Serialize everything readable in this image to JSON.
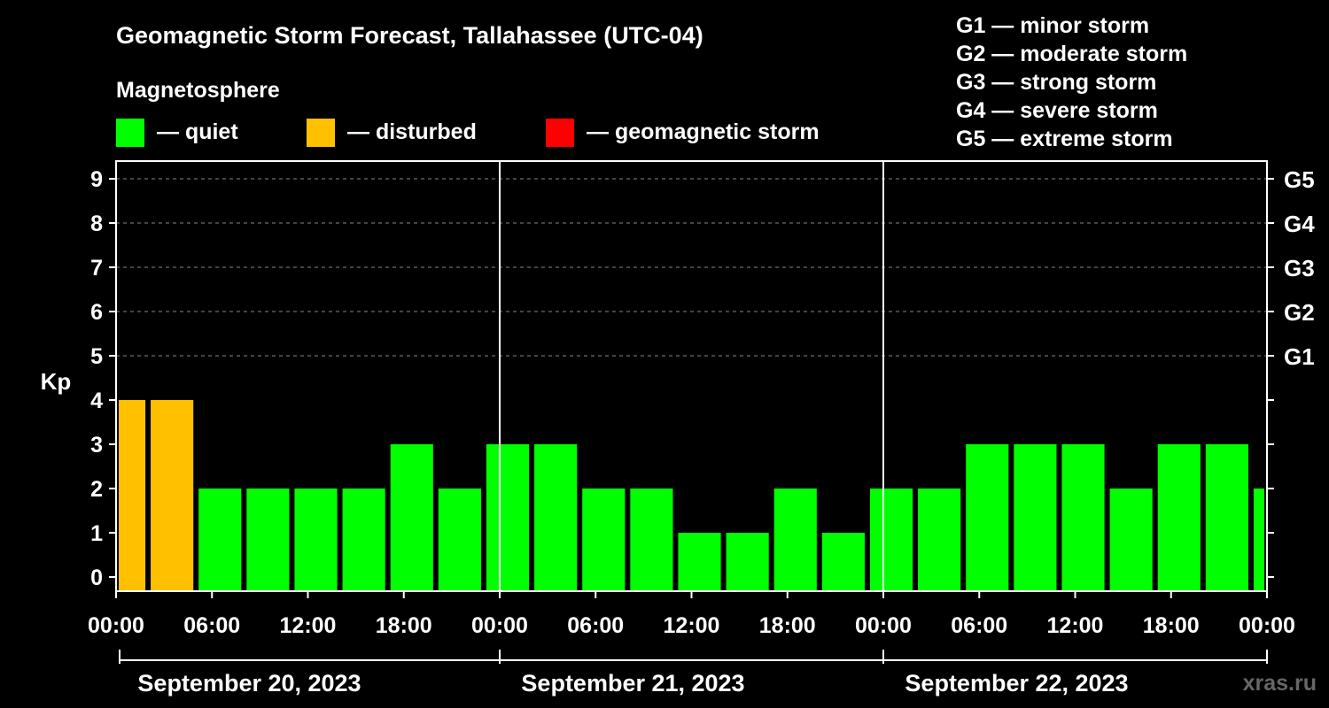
{
  "chart_data": {
    "type": "bar",
    "title": "Geomagnetic Storm Forecast, Tallahassee (UTC-04)",
    "subtitle": "Magnetosphere",
    "ylabel": "Kp",
    "ylim": [
      0,
      9
    ],
    "yticks": [
      "0",
      "1",
      "2",
      "3",
      "4",
      "5",
      "6",
      "7",
      "8",
      "9"
    ],
    "right_axis": {
      "labels": [
        {
          "kp": 5,
          "label": "G1"
        },
        {
          "kp": 6,
          "label": "G2"
        },
        {
          "kp": 7,
          "label": "G3"
        },
        {
          "kp": 8,
          "label": "G4"
        },
        {
          "kp": 9,
          "label": "G5"
        }
      ]
    },
    "legend": [
      {
        "label": "— quiet",
        "color": "#00ff00"
      },
      {
        "label": "— disturbed",
        "color": "#ffc000"
      },
      {
        "label": "— geomagnetic storm",
        "color": "#ff0000"
      }
    ],
    "storm_scale": [
      "G1 — minor storm",
      "G2 — moderate storm",
      "G3 — strong storm",
      "G4 — severe storm",
      "G5 — extreme storm"
    ],
    "x_range_hours": [
      0,
      72
    ],
    "xticks": [
      {
        "hour": 0,
        "label": "00:00"
      },
      {
        "hour": 6,
        "label": "06:00"
      },
      {
        "hour": 12,
        "label": "12:00"
      },
      {
        "hour": 18,
        "label": "18:00"
      },
      {
        "hour": 24,
        "label": "00:00"
      },
      {
        "hour": 30,
        "label": "06:00"
      },
      {
        "hour": 36,
        "label": "12:00"
      },
      {
        "hour": 42,
        "label": "18:00"
      },
      {
        "hour": 48,
        "label": "00:00"
      },
      {
        "hour": 54,
        "label": "06:00"
      },
      {
        "hour": 60,
        "label": "12:00"
      },
      {
        "hour": 66,
        "label": "18:00"
      },
      {
        "hour": 72,
        "label": "00:00"
      }
    ],
    "days": [
      {
        "label": "September 20, 2023",
        "start_hour": 0,
        "end_hour": 24
      },
      {
        "label": "September 21, 2023",
        "start_hour": 24,
        "end_hour": 48
      },
      {
        "label": "September 22, 2023",
        "start_hour": 48,
        "end_hour": 72
      }
    ],
    "bars": [
      {
        "start_hour": 0,
        "end_hour": 2,
        "kp": 4,
        "status": "disturbed"
      },
      {
        "start_hour": 2,
        "end_hour": 5,
        "kp": 4,
        "status": "disturbed"
      },
      {
        "start_hour": 5,
        "end_hour": 8,
        "kp": 2,
        "status": "quiet"
      },
      {
        "start_hour": 8,
        "end_hour": 11,
        "kp": 2,
        "status": "quiet"
      },
      {
        "start_hour": 11,
        "end_hour": 14,
        "kp": 2,
        "status": "quiet"
      },
      {
        "start_hour": 14,
        "end_hour": 17,
        "kp": 2,
        "status": "quiet"
      },
      {
        "start_hour": 17,
        "end_hour": 20,
        "kp": 3,
        "status": "quiet"
      },
      {
        "start_hour": 20,
        "end_hour": 23,
        "kp": 2,
        "status": "quiet"
      },
      {
        "start_hour": 23,
        "end_hour": 26,
        "kp": 3,
        "status": "quiet"
      },
      {
        "start_hour": 26,
        "end_hour": 29,
        "kp": 3,
        "status": "quiet"
      },
      {
        "start_hour": 29,
        "end_hour": 32,
        "kp": 2,
        "status": "quiet"
      },
      {
        "start_hour": 32,
        "end_hour": 35,
        "kp": 2,
        "status": "quiet"
      },
      {
        "start_hour": 35,
        "end_hour": 38,
        "kp": 1,
        "status": "quiet"
      },
      {
        "start_hour": 38,
        "end_hour": 41,
        "kp": 1,
        "status": "quiet"
      },
      {
        "start_hour": 41,
        "end_hour": 44,
        "kp": 2,
        "status": "quiet"
      },
      {
        "start_hour": 44,
        "end_hour": 47,
        "kp": 1,
        "status": "quiet"
      },
      {
        "start_hour": 47,
        "end_hour": 50,
        "kp": 2,
        "status": "quiet"
      },
      {
        "start_hour": 50,
        "end_hour": 53,
        "kp": 2,
        "status": "quiet"
      },
      {
        "start_hour": 53,
        "end_hour": 56,
        "kp": 3,
        "status": "quiet"
      },
      {
        "start_hour": 56,
        "end_hour": 59,
        "kp": 3,
        "status": "quiet"
      },
      {
        "start_hour": 59,
        "end_hour": 62,
        "kp": 3,
        "status": "quiet"
      },
      {
        "start_hour": 62,
        "end_hour": 65,
        "kp": 2,
        "status": "quiet"
      },
      {
        "start_hour": 65,
        "end_hour": 68,
        "kp": 3,
        "status": "quiet"
      },
      {
        "start_hour": 68,
        "end_hour": 71,
        "kp": 3,
        "status": "quiet"
      },
      {
        "start_hour": 71,
        "end_hour": 72,
        "kp": 2,
        "status": "quiet"
      }
    ],
    "status_colors": {
      "quiet": "#00ff00",
      "disturbed": "#ffc000",
      "storm": "#ff0000"
    },
    "watermark": "xras.ru"
  }
}
